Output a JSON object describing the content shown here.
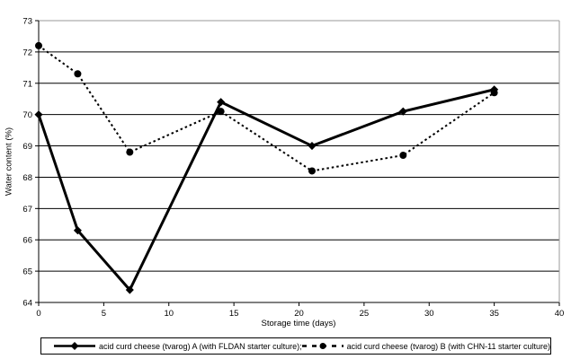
{
  "chart_data": {
    "type": "line",
    "title": "",
    "xlabel": "Storage time (days)",
    "ylabel": "Water content (%)",
    "xlim": [
      0,
      40
    ],
    "ylim": [
      64,
      73
    ],
    "x_ticks": [
      0,
      5,
      10,
      15,
      20,
      25,
      30,
      35,
      40
    ],
    "y_ticks": [
      64,
      65,
      66,
      67,
      68,
      69,
      70,
      71,
      72,
      73
    ],
    "grid": "horizontal",
    "legend_position": "bottom",
    "frame_gray_color": "#999999",
    "series_color": "#000000",
    "series": [
      {
        "name": "acid curd cheese (tvarog) A (with FLDAN starter culture);",
        "marker": "diamond",
        "line": "solid",
        "x": [
          0,
          3,
          7,
          14,
          21,
          28,
          35
        ],
        "y": [
          70.0,
          66.3,
          64.4,
          70.4,
          69.0,
          70.1,
          70.8
        ]
      },
      {
        "name": "acid curd cheese (tvarog) B (with CHN-11 starter culture)",
        "marker": "circle",
        "line": "dashed",
        "x": [
          0,
          3,
          7,
          14,
          21,
          28,
          35
        ],
        "y": [
          72.2,
          71.3,
          68.8,
          70.1,
          68.2,
          68.7,
          70.7
        ]
      }
    ]
  }
}
